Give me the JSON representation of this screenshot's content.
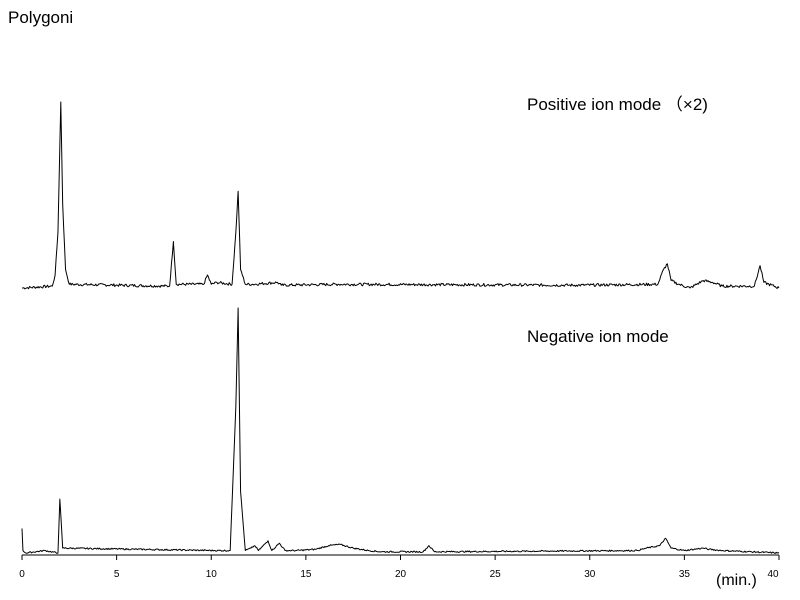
{
  "chart_data": {
    "type": "line",
    "title": "Polygoni",
    "xlabel": "(min.)",
    "ylabel": "",
    "xlim": [
      0,
      40
    ],
    "x_ticks": [
      "0",
      "5",
      "10",
      "15",
      "20",
      "25",
      "30",
      "35",
      "40"
    ],
    "series": [
      {
        "name": "Positive ion mode (×2)",
        "label": "Positive ion mode （×2)",
        "baseline_noise": 0.015,
        "points": [
          [
            0.0,
            0.0
          ],
          [
            1.6,
            0.01
          ],
          [
            1.75,
            0.07
          ],
          [
            1.9,
            0.3
          ],
          [
            2.05,
            1.0
          ],
          [
            2.15,
            0.45
          ],
          [
            2.3,
            0.1
          ],
          [
            2.5,
            0.02
          ],
          [
            7.8,
            0.01
          ],
          [
            8.0,
            0.25
          ],
          [
            8.15,
            0.02
          ],
          [
            9.6,
            0.02
          ],
          [
            9.8,
            0.07
          ],
          [
            10.0,
            0.02
          ],
          [
            10.3,
            0.03
          ],
          [
            11.1,
            0.02
          ],
          [
            11.3,
            0.3
          ],
          [
            11.42,
            0.52
          ],
          [
            11.55,
            0.1
          ],
          [
            11.8,
            0.02
          ],
          [
            12.2,
            0.02
          ],
          [
            13.5,
            0.03
          ],
          [
            13.7,
            0.015
          ],
          [
            16.7,
            0.02
          ],
          [
            29.3,
            0.015
          ],
          [
            33.6,
            0.02
          ],
          [
            33.9,
            0.1
          ],
          [
            34.1,
            0.13
          ],
          [
            34.3,
            0.04
          ],
          [
            34.7,
            0.02
          ],
          [
            35.3,
            0.0
          ],
          [
            36.0,
            0.04
          ],
          [
            36.5,
            0.03
          ],
          [
            37.0,
            0.01
          ],
          [
            38.7,
            0.01
          ],
          [
            39.0,
            0.12
          ],
          [
            39.2,
            0.03
          ],
          [
            40.0,
            0.0
          ]
        ]
      },
      {
        "name": "Negative ion mode",
        "label": "Negative ion mode",
        "baseline_noise": 0.006,
        "points": [
          [
            0.0,
            0.1
          ],
          [
            0.05,
            0.01
          ],
          [
            0.2,
            0.0
          ],
          [
            1.2,
            0.01
          ],
          [
            1.9,
            0.0
          ],
          [
            2.0,
            0.22
          ],
          [
            2.15,
            0.02
          ],
          [
            10.2,
            0.01
          ],
          [
            11.0,
            0.01
          ],
          [
            11.3,
            0.6
          ],
          [
            11.42,
            1.0
          ],
          [
            11.55,
            0.25
          ],
          [
            11.8,
            0.01
          ],
          [
            12.1,
            0.02
          ],
          [
            12.3,
            0.03
          ],
          [
            12.5,
            0.01
          ],
          [
            13.0,
            0.05
          ],
          [
            13.2,
            0.01
          ],
          [
            13.6,
            0.04
          ],
          [
            13.9,
            0.01
          ],
          [
            14.5,
            0.01
          ],
          [
            15.5,
            0.015
          ],
          [
            16.2,
            0.03
          ],
          [
            16.8,
            0.035
          ],
          [
            17.5,
            0.02
          ],
          [
            18.3,
            0.01
          ],
          [
            19.0,
            0.005
          ],
          [
            21.2,
            0.005
          ],
          [
            21.5,
            0.03
          ],
          [
            21.8,
            0.005
          ],
          [
            32.5,
            0.01
          ],
          [
            33.0,
            0.02
          ],
          [
            33.7,
            0.03
          ],
          [
            34.0,
            0.06
          ],
          [
            34.3,
            0.02
          ],
          [
            35.0,
            0.01
          ],
          [
            36.0,
            0.02
          ],
          [
            36.3,
            0.015
          ],
          [
            37.0,
            0.01
          ],
          [
            40.0,
            0.0
          ]
        ]
      }
    ],
    "grid": false,
    "legend": "none"
  }
}
